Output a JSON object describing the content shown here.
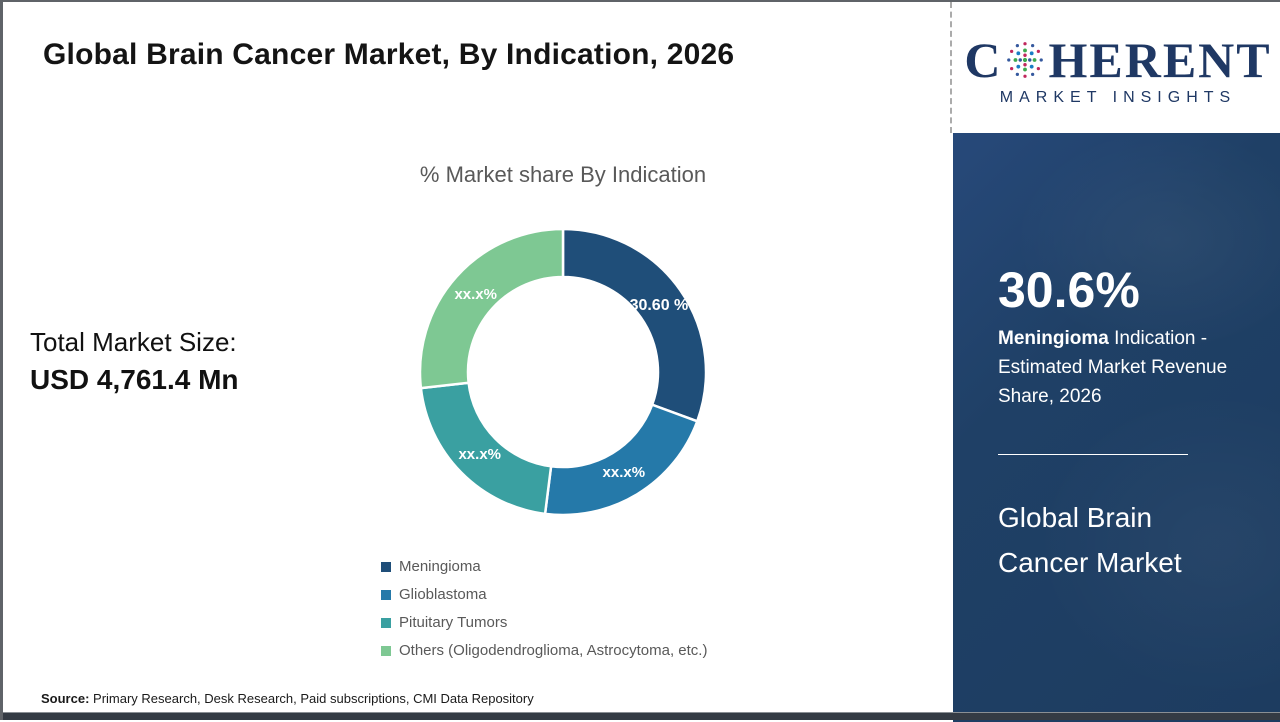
{
  "header": {
    "title": "Global Brain Cancer Market, By Indication, 2026"
  },
  "logo": {
    "prefix": "C",
    "suffix": "HERENT",
    "tagline": "MARKET INSIGHTS",
    "navy": "#1f3864",
    "globe_dot_colors": [
      "#3daa4e",
      "#1a7dc4",
      "#c0275c",
      "#35589e"
    ]
  },
  "left_panel": {
    "market_size_label": "Total Market Size:",
    "market_size_value": "USD 4,761.4 Mn"
  },
  "chart_data": {
    "type": "pie",
    "donut": true,
    "title": "% Market share By Indication",
    "categories": [
      "Meningioma",
      "Glioblastoma",
      "Pituitary Tumors",
      "Others (Oligodendroglioma, Astrocytoma, etc.)"
    ],
    "values": [
      30.6,
      21.4,
      21.2,
      26.8
    ],
    "values_note": "Only the Meningioma slice is labeled (30.60 %); other slice values are masked as xx.x% in the figure and estimated from arc angles",
    "data_labels": [
      "30.60 %",
      "xx.x%",
      "xx.x%",
      "xx.x%"
    ],
    "colors": [
      "#1f4e79",
      "#2579a9",
      "#3aa0a1",
      "#7ec893"
    ],
    "legend_position": "bottom"
  },
  "sidebar": {
    "stat_value": "30.6%",
    "stat_bold": "Meningioma",
    "stat_rest": " Indication - Estimated Market Revenue Share, 2026",
    "market_name": "Global Brain Cancer Market",
    "background": "#1f4066"
  },
  "footer": {
    "source_label": "Source:",
    "source_text": " Primary Research, Desk Research, Paid subscriptions, CMI Data Repository"
  }
}
